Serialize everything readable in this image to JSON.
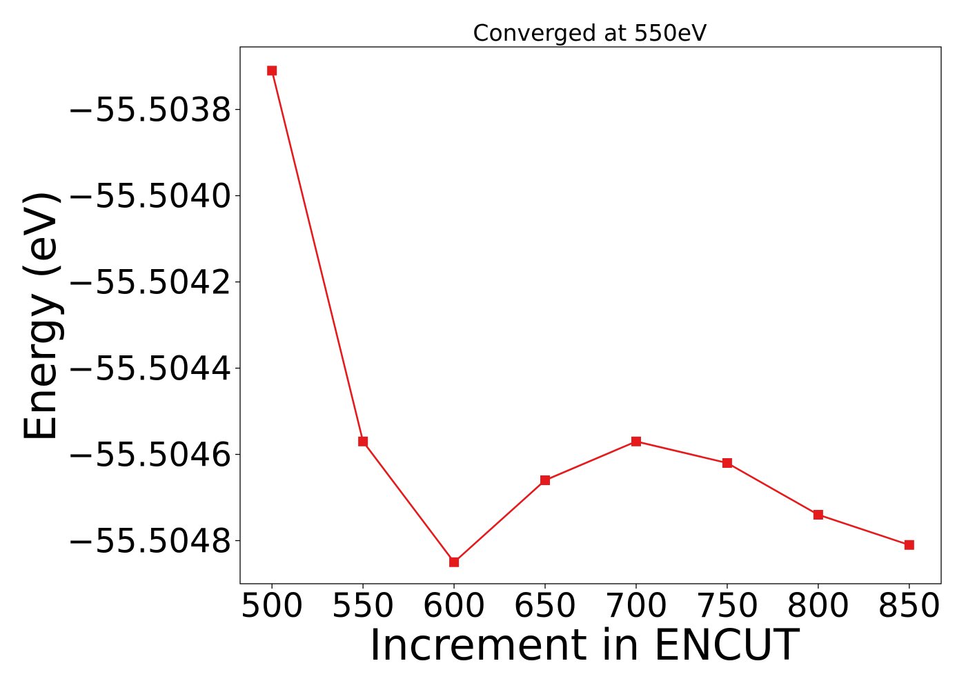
{
  "chart_data": {
    "type": "line",
    "title": "Converged at 550eV",
    "xlabel": "Increment in ENCUT",
    "ylabel": "Energy (eV)",
    "x": [
      500,
      550,
      600,
      650,
      700,
      750,
      800,
      850
    ],
    "series": [
      {
        "values": [
          -55.50371,
          -55.50457,
          -55.50485,
          -55.50466,
          -55.50457,
          -55.50462,
          -55.50474,
          -55.50481
        ],
        "color": "#e41a1c",
        "marker": "square"
      }
    ],
    "xticks": [
      500,
      550,
      600,
      650,
      700,
      750,
      800,
      850
    ],
    "xtick_labels": [
      "500",
      "550",
      "600",
      "650",
      "700",
      "750",
      "800",
      "850"
    ],
    "yticks": [
      -55.5038,
      -55.504,
      -55.5042,
      -55.5044,
      -55.5046,
      -55.5048
    ],
    "ytick_labels": [
      "−55.5038",
      "−55.5040",
      "−55.5042",
      "−55.5044",
      "−55.5046",
      "−55.5048"
    ],
    "xlim": [
      482.5,
      867.5
    ],
    "ylim": [
      -55.5049,
      -55.503655
    ],
    "grid": false,
    "legend": "none"
  }
}
